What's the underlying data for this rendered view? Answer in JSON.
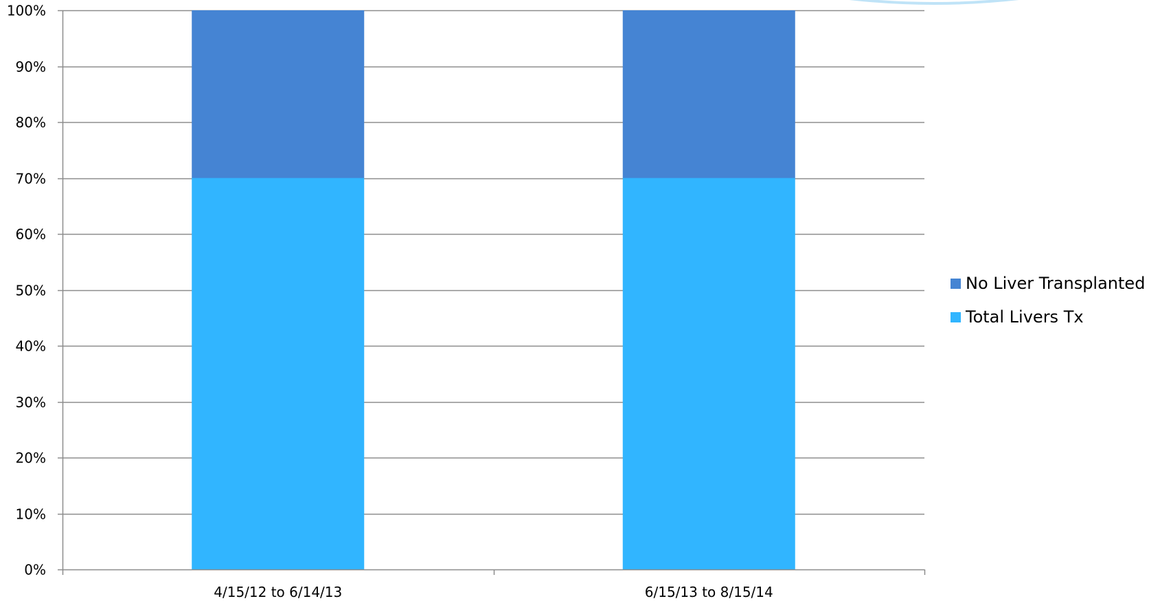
{
  "chart_data": {
    "type": "bar",
    "stacked": true,
    "percent": true,
    "categories": [
      "4/15/12 to 6/14/13",
      "6/15/13 to 8/15/14"
    ],
    "series": [
      {
        "name": "Total Livers Tx",
        "values": [
          70,
          70
        ],
        "color": "#31B5FF"
      },
      {
        "name": "No Liver Transplanted",
        "values": [
          30,
          30
        ],
        "color": "#4584D3"
      }
    ],
    "ylim": [
      0,
      100
    ],
    "yticks": [
      "0%",
      "10%",
      "20%",
      "30%",
      "40%",
      "50%",
      "60%",
      "70%",
      "80%",
      "90%",
      "100%"
    ],
    "grid": true,
    "legend_position": "right",
    "title": "",
    "xlabel": "",
    "ylabel": ""
  },
  "decoration": {
    "ellipse_color": "#BFE3F7"
  }
}
